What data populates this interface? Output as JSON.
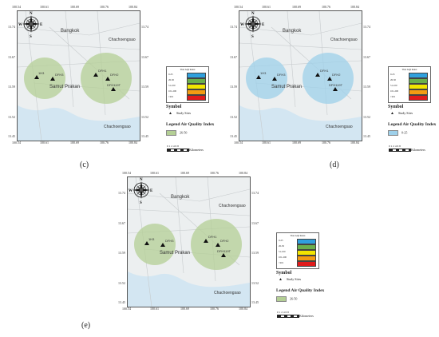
{
  "panels": [
    {
      "id": "c",
      "caption": "(c)",
      "zone_color": "#b4cf95",
      "legend_class": "26-50",
      "top_ticks": [
        "100.54",
        "100.61",
        "100.69",
        "100.76",
        "100.84"
      ],
      "side_ticks": [
        "13.74",
        "13.67",
        "13.59",
        "13.52",
        "13.45"
      ]
    },
    {
      "id": "d",
      "caption": "(d)",
      "zone_color": "#9ed0ea",
      "legend_class": "0-25",
      "top_ticks": [
        "100.54",
        "100.61",
        "100.69",
        "100.76",
        "100.84"
      ],
      "side_ticks": [
        "13.74",
        "13.67",
        "13.59",
        "13.52",
        "13.45"
      ]
    },
    {
      "id": "e",
      "caption": "(e)",
      "zone_color": "#b4cf95",
      "legend_class": "26-50",
      "top_ticks": [
        "100.54",
        "100.61",
        "100.69",
        "100.76",
        "100.84"
      ],
      "side_ticks": [
        "13.74",
        "13.67",
        "13.59",
        "13.52",
        "13.45"
      ]
    }
  ],
  "map_labels": {
    "bangkok": "Bangkok",
    "chachoengsao_top": "Chachoengsao",
    "chachoengsao_bottom": "Chachoengsao",
    "samut_prakan": "Samut Prakan",
    "north": "N",
    "south": "S",
    "east": "E",
    "west": "W"
  },
  "sites": [
    {
      "id": "s1",
      "label": "1H3"
    },
    {
      "id": "s2",
      "label": "DFH3"
    },
    {
      "id": "s3",
      "label": "DFH1"
    },
    {
      "id": "s4",
      "label": "DFH2"
    },
    {
      "id": "s5",
      "label": "DFH119T"
    }
  ],
  "aqi_table": {
    "title": "Thai AQI Index",
    "rows": [
      {
        "range": "0-25",
        "color": "#2fa0dd"
      },
      {
        "range": "26-50",
        "color": "#6ab04c"
      },
      {
        "range": "51-100",
        "color": "#f2e500"
      },
      {
        "range": "101-200",
        "color": "#f39c12"
      },
      {
        "range": ">201",
        "color": "#e01b1b"
      }
    ]
  },
  "symbol": {
    "title": "Symbol",
    "study_sites": "Study Sites"
  },
  "legend": {
    "title": "Legend Air Quality Index"
  },
  "scale": {
    "numbers": "0 1 2     4     6     8",
    "unit": "Kilometers"
  },
  "colors": {
    "land": "#eceff0",
    "sea": "#d3e6f2",
    "roads": "#c7cbcd"
  }
}
